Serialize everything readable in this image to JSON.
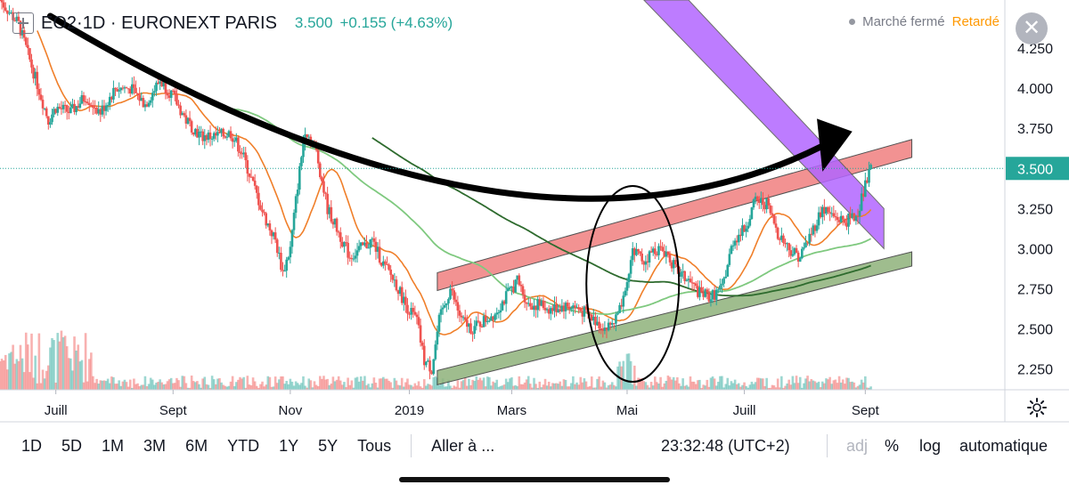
{
  "header": {
    "symbol": "EO2",
    "interval": "1D",
    "exchange": "EURONEXT PARIS",
    "price": "3.500",
    "change": "+0.155 (+4.63%)"
  },
  "status": {
    "market_closed": "Marché fermé",
    "delayed": "Retardé"
  },
  "close_icon": "close-icon",
  "bottom_bar": {
    "ranges": [
      "1D",
      "5D",
      "1M",
      "3M",
      "6M",
      "YTD",
      "1Y",
      "5Y",
      "Tous"
    ],
    "goto": "Aller à ...",
    "time": "23:32:48 (UTC+2)",
    "adj": "adj",
    "percent": "%",
    "log": "log",
    "auto": "automatique"
  },
  "colors": {
    "up": "#26a69a",
    "down": "#ef5350",
    "ma_fast": "#f07f2a",
    "ma_mid": "#7fc97f",
    "ma_slow": "#2e6b2e",
    "purple_channel": "#b266ff",
    "red_band": "#f08080",
    "green_band": "#8fb27b",
    "price_line": "#26a69a"
  },
  "chart_data": {
    "type": "candlestick",
    "y_axis": {
      "ticks": [
        "4.250",
        "4.000",
        "3.750",
        "3.500",
        "3.250",
        "3.000",
        "2.750",
        "2.500",
        "2.250"
      ],
      "current": "3.500",
      "ylim": [
        2.12,
        4.55
      ]
    },
    "x_axis": {
      "ticks": [
        "Juill",
        "Sept",
        "Nov",
        "2019",
        "Mars",
        "Mai",
        "Juill",
        "Sept"
      ],
      "tick_days": [
        0,
        63,
        126,
        190,
        245,
        307,
        370,
        435
      ],
      "xlim": [
        -30,
        510
      ]
    },
    "annotations": [
      "black curved arrow",
      "ellipse around Mai breakout",
      "purple descending channel",
      "red ascending resistance band",
      "green ascending support band"
    ],
    "close_path": [
      [
        -30,
        4.55
      ],
      [
        -20,
        4.4
      ],
      [
        -12,
        4.1
      ],
      [
        -4,
        3.8
      ],
      [
        0,
        3.88
      ],
      [
        8,
        3.85
      ],
      [
        16,
        3.95
      ],
      [
        24,
        3.85
      ],
      [
        32,
        4.0
      ],
      [
        40,
        4.0
      ],
      [
        48,
        3.9
      ],
      [
        56,
        4.05
      ],
      [
        63,
        3.95
      ],
      [
        70,
        3.8
      ],
      [
        78,
        3.7
      ],
      [
        86,
        3.7
      ],
      [
        94,
        3.72
      ],
      [
        100,
        3.6
      ],
      [
        106,
        3.4
      ],
      [
        112,
        3.2
      ],
      [
        118,
        3.05
      ],
      [
        122,
        2.85
      ],
      [
        126,
        3.0
      ],
      [
        130,
        3.4
      ],
      [
        134,
        3.75
      ],
      [
        140,
        3.6
      ],
      [
        146,
        3.25
      ],
      [
        152,
        3.1
      ],
      [
        158,
        2.95
      ],
      [
        164,
        3.0
      ],
      [
        170,
        3.05
      ],
      [
        176,
        2.9
      ],
      [
        182,
        2.8
      ],
      [
        188,
        2.65
      ],
      [
        194,
        2.55
      ],
      [
        198,
        2.3
      ],
      [
        202,
        2.25
      ],
      [
        206,
        2.55
      ],
      [
        212,
        2.75
      ],
      [
        218,
        2.55
      ],
      [
        224,
        2.5
      ],
      [
        230,
        2.55
      ],
      [
        236,
        2.6
      ],
      [
        242,
        2.7
      ],
      [
        248,
        2.8
      ],
      [
        254,
        2.65
      ],
      [
        260,
        2.65
      ],
      [
        266,
        2.62
      ],
      [
        272,
        2.64
      ],
      [
        278,
        2.64
      ],
      [
        284,
        2.6
      ],
      [
        290,
        2.55
      ],
      [
        296,
        2.5
      ],
      [
        302,
        2.58
      ],
      [
        306,
        2.7
      ],
      [
        310,
        3.0
      ],
      [
        316,
        2.92
      ],
      [
        322,
        3.0
      ],
      [
        328,
        2.98
      ],
      [
        334,
        2.85
      ],
      [
        340,
        2.8
      ],
      [
        346,
        2.72
      ],
      [
        352,
        2.7
      ],
      [
        358,
        2.75
      ],
      [
        364,
        3.05
      ],
      [
        370,
        3.12
      ],
      [
        376,
        3.3
      ],
      [
        382,
        3.28
      ],
      [
        388,
        3.1
      ],
      [
        394,
        3.0
      ],
      [
        400,
        2.95
      ],
      [
        406,
        3.1
      ],
      [
        412,
        3.25
      ],
      [
        418,
        3.2
      ],
      [
        424,
        3.17
      ],
      [
        430,
        3.2
      ],
      [
        434,
        3.35
      ],
      [
        438,
        3.5
      ]
    ]
  }
}
